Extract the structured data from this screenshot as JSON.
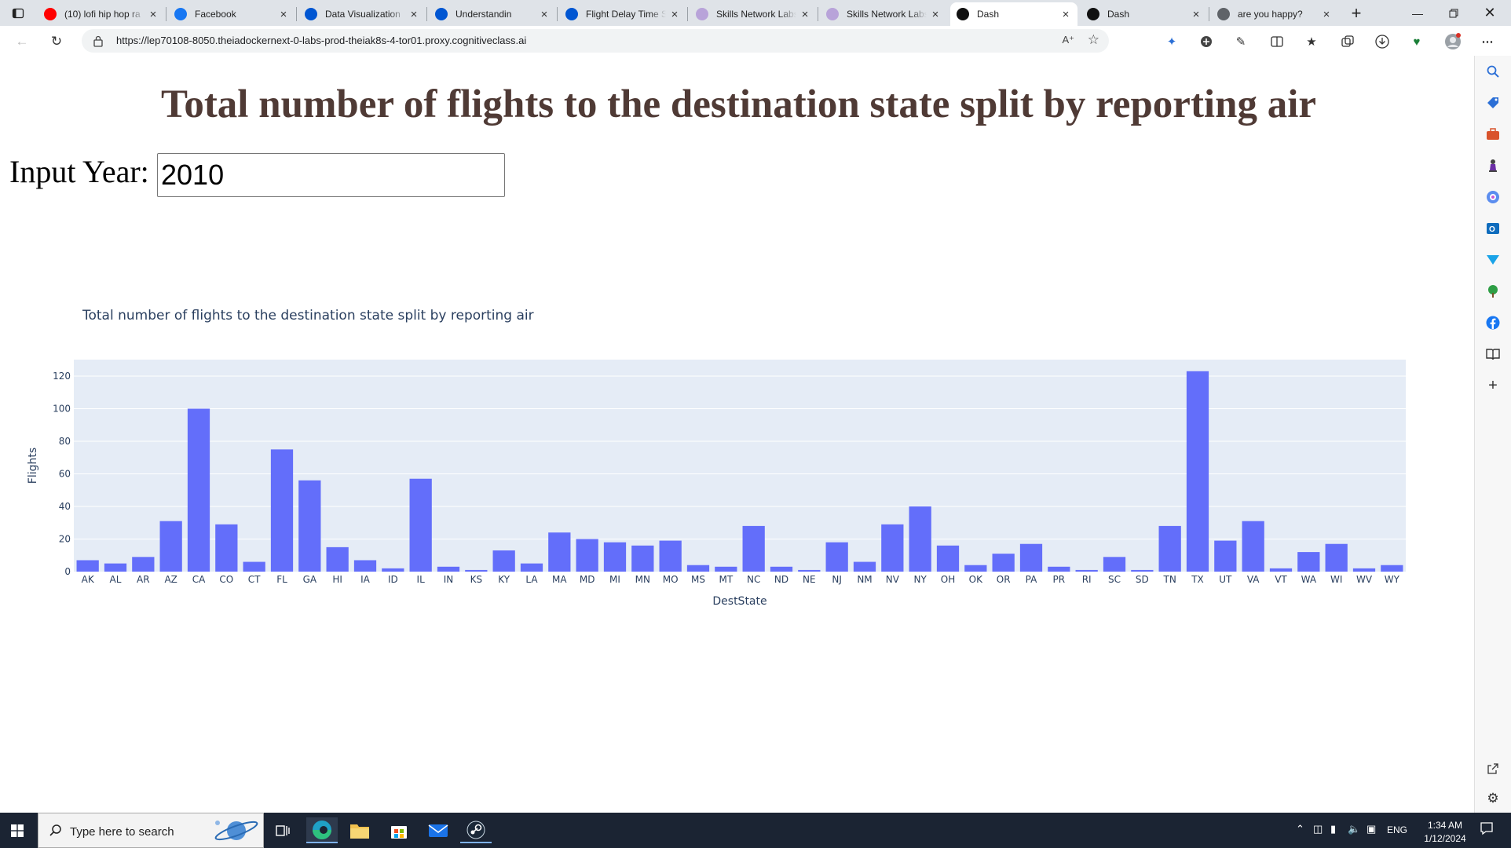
{
  "browser": {
    "tabs": [
      {
        "title": "(10) lofi hip hop ra",
        "favicon": "youtube-icon",
        "color": "#ff0000",
        "active": false
      },
      {
        "title": "Facebook",
        "favicon": "facebook-icon",
        "color": "#1877f2",
        "active": false
      },
      {
        "title": "Data Visualization",
        "favicon": "coursera-icon",
        "color": "#0056d2",
        "active": false
      },
      {
        "title": "Understandin",
        "favicon": "coursera-icon",
        "color": "#0056d2",
        "active": false
      },
      {
        "title": "Flight Delay Time S",
        "favicon": "coursera-icon",
        "color": "#0056d2",
        "active": false
      },
      {
        "title": "Skills Network Labs",
        "favicon": "skills-network-icon",
        "color": "#b8a3d9",
        "active": false
      },
      {
        "title": "Skills Network Labs",
        "favicon": "skills-network-icon",
        "color": "#b8a3d9",
        "active": false
      },
      {
        "title": "Dash",
        "favicon": "dash-icon",
        "color": "#111111",
        "active": true
      },
      {
        "title": "Dash",
        "favicon": "dash-icon",
        "color": "#111111",
        "active": false
      },
      {
        "title": "are you happy?",
        "favicon": "globe-icon",
        "color": "#5f6368",
        "active": false
      }
    ],
    "url": "https://lep70108-8050.theiadockernext-0-labs-prod-theiak8s-4-tor01.proxy.cognitiveclass.ai"
  },
  "page": {
    "title": "Total number of flights to the destination state split by reporting air",
    "input_label": "Input Year:",
    "input_value": "2010"
  },
  "chart_data": {
    "type": "bar",
    "title": "Total number of flights to the destination state split by reporting air",
    "xlabel": "DestState",
    "ylabel": "Flights",
    "ylim": [
      0,
      130
    ],
    "yticks": [
      0,
      20,
      40,
      60,
      80,
      100,
      120
    ],
    "bar_color": "#636efa",
    "plot_bgcolor": "#e5ecf6",
    "grid": true,
    "categories": [
      "AK",
      "AL",
      "AR",
      "AZ",
      "CA",
      "CO",
      "CT",
      "FL",
      "GA",
      "HI",
      "IA",
      "ID",
      "IL",
      "IN",
      "KS",
      "KY",
      "LA",
      "MA",
      "MD",
      "MI",
      "MN",
      "MO",
      "MS",
      "MT",
      "NC",
      "ND",
      "NE",
      "NJ",
      "NM",
      "NV",
      "NY",
      "OH",
      "OK",
      "OR",
      "PA",
      "PR",
      "RI",
      "SC",
      "SD",
      "TN",
      "TX",
      "UT",
      "VA",
      "VT",
      "WA",
      "WI",
      "WV",
      "WY"
    ],
    "values": [
      7,
      5,
      9,
      31,
      100,
      29,
      6,
      75,
      56,
      15,
      7,
      2,
      57,
      3,
      1,
      13,
      5,
      24,
      20,
      18,
      16,
      19,
      4,
      3,
      28,
      3,
      1,
      18,
      6,
      29,
      40,
      16,
      4,
      11,
      17,
      3,
      1,
      9,
      1,
      28,
      123,
      19,
      31,
      2,
      12,
      17,
      2,
      4
    ]
  },
  "taskbar": {
    "search_placeholder": "Type here to search",
    "language": "ENG",
    "time": "1:34 AM",
    "date": "1/12/2024"
  }
}
